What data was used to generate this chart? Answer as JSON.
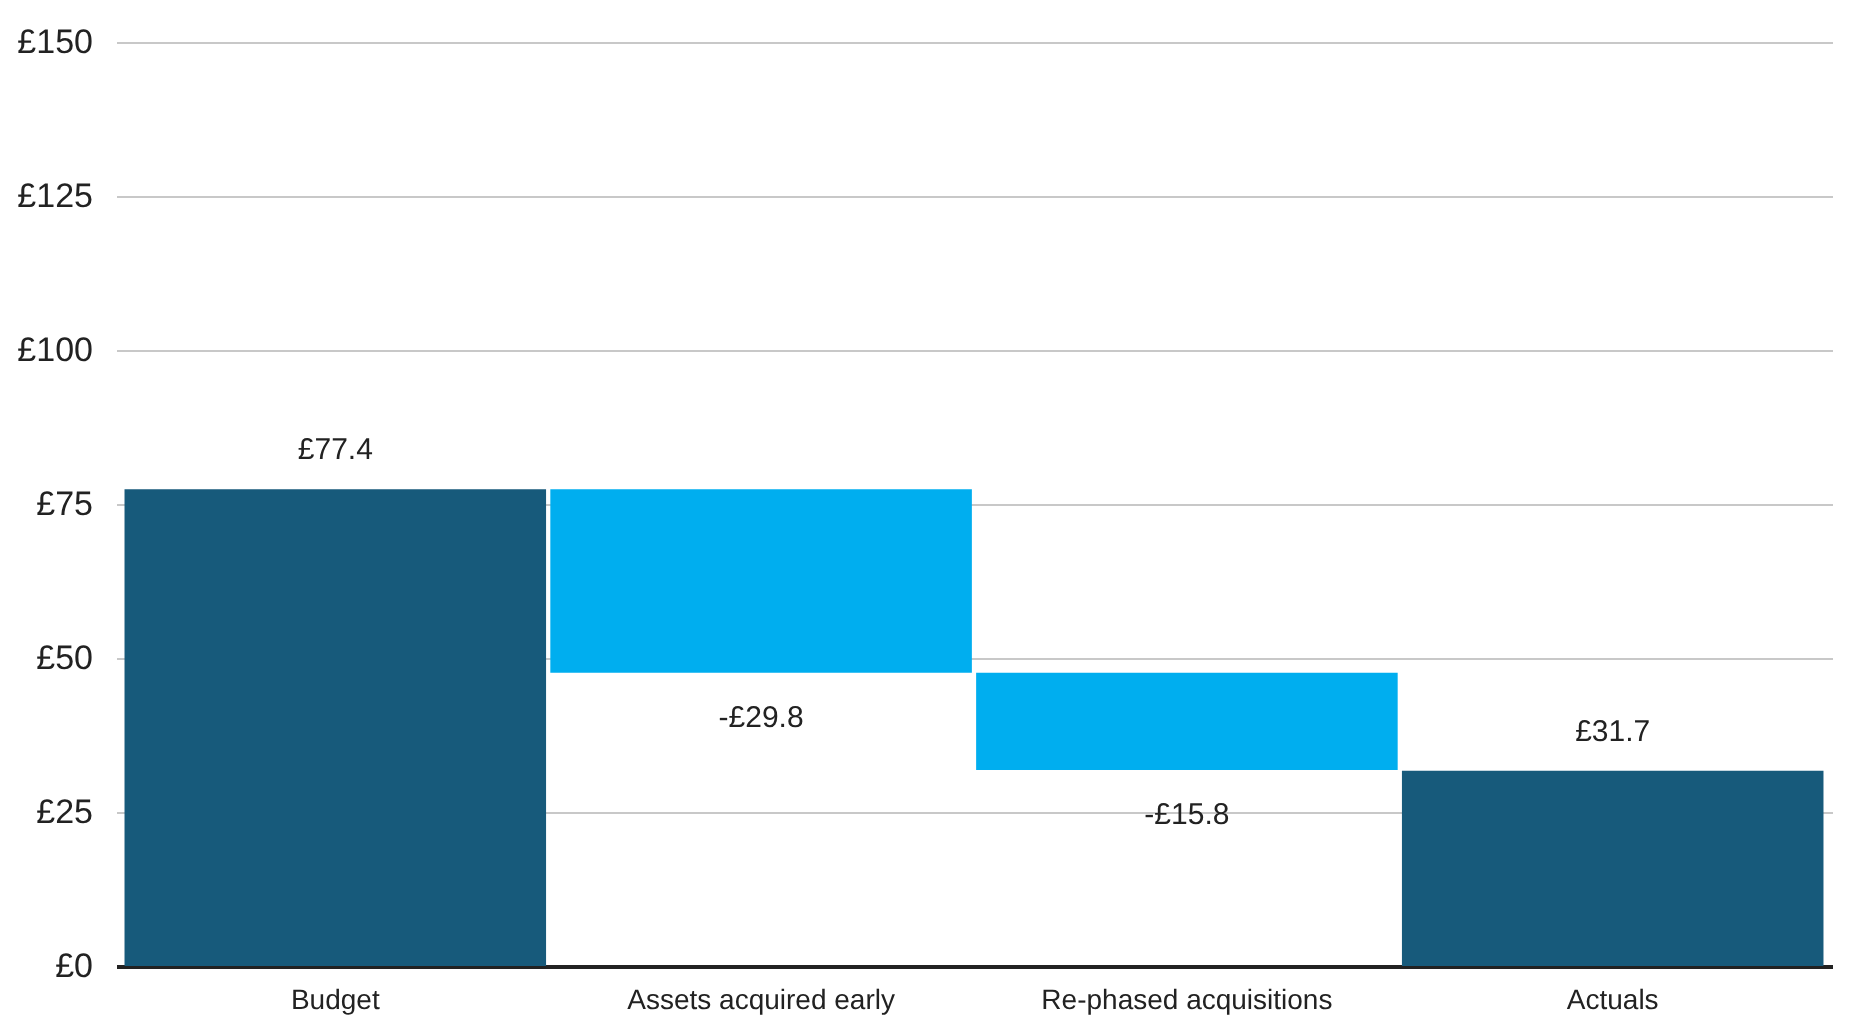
{
  "chart_data": {
    "type": "bar",
    "categories": [
      "Budget",
      "Assets acquired early",
      "Re-phased acquisitions",
      "Actuals"
    ],
    "values": [
      77.4,
      -29.8,
      -15.8,
      31.7
    ],
    "base": [
      0,
      77.4,
      47.6,
      0
    ],
    "colors": [
      "#175a7b",
      "#00aeef",
      "#00aeef",
      "#175a7b"
    ],
    "value_labels": [
      "£77.4",
      "-£29.8",
      "-£15.8",
      "£31.7"
    ],
    "ylim": [
      0,
      150
    ],
    "yticks": [
      {
        "value": 0,
        "label": "£0"
      },
      {
        "value": 25,
        "label": "£25"
      },
      {
        "value": 50,
        "label": "£50"
      },
      {
        "value": 75,
        "label": "£75"
      },
      {
        "value": 100,
        "label": "£100"
      },
      {
        "value": 125,
        "label": "£125"
      },
      {
        "value": 150,
        "label": "£150"
      }
    ],
    "grid": "y"
  }
}
